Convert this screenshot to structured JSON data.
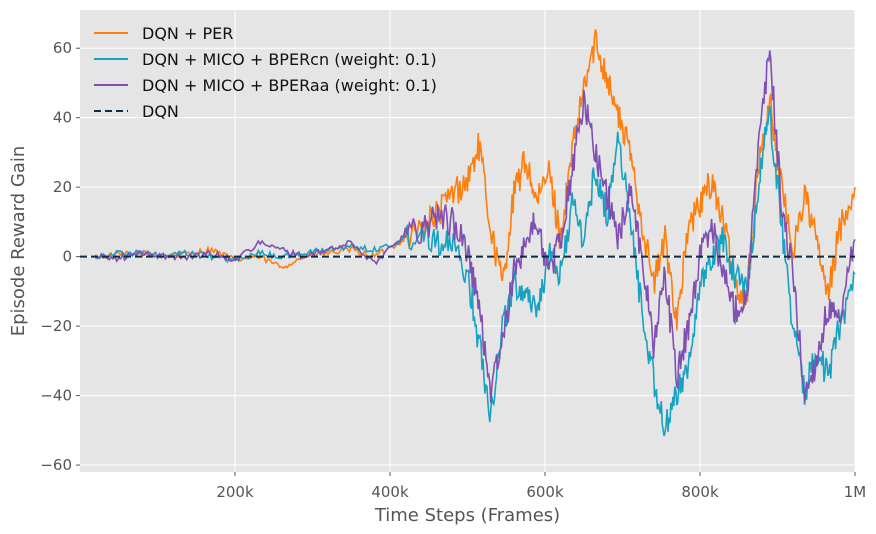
{
  "chart_data": {
    "type": "line",
    "title": "",
    "xlabel": "Time Steps (Frames)",
    "ylabel": "Episode Reward Gain",
    "xlim": [
      0,
      1000000
    ],
    "ylim": [
      -62,
      71
    ],
    "xticks": [
      {
        "value": 200000,
        "label": "200k"
      },
      {
        "value": 400000,
        "label": "400k"
      },
      {
        "value": 600000,
        "label": "600k"
      },
      {
        "value": 800000,
        "label": "800k"
      },
      {
        "value": 1000000,
        "label": "1M"
      }
    ],
    "yticks": [
      {
        "value": 60,
        "label": "60"
      },
      {
        "value": 40,
        "label": "40"
      },
      {
        "value": 20,
        "label": "20"
      },
      {
        "value": 0,
        "label": "0"
      },
      {
        "value": -20,
        "label": "−20"
      },
      {
        "value": -40,
        "label": "−40"
      },
      {
        "value": -60,
        "label": "−60"
      }
    ],
    "grid": true,
    "legend_position": "top-left",
    "series": [
      {
        "name": "DQN + PER",
        "color": "#ff7f0e",
        "style": "solid",
        "x": [
          20000,
          50000,
          80000,
          110000,
          140000,
          170000,
          200000,
          230000,
          260000,
          290000,
          320000,
          350000,
          380000,
          410000,
          440000,
          460000,
          480000,
          500000,
          515000,
          530000,
          545000,
          560000,
          575000,
          590000,
          605000,
          620000,
          635000,
          650000,
          665000,
          680000,
          695000,
          710000,
          725000,
          740000,
          755000,
          770000,
          785000,
          800000,
          815000,
          830000,
          845000,
          860000,
          875000,
          890000,
          905000,
          920000,
          935000,
          950000,
          965000,
          980000,
          1000000
        ],
        "y": [
          0,
          0.5,
          1,
          0,
          1,
          2,
          -1,
          0,
          -3,
          0,
          1,
          2,
          0,
          4,
          8,
          12,
          18,
          22,
          32,
          8,
          -8,
          18,
          28,
          15,
          25,
          5,
          30,
          48,
          62,
          52,
          40,
          30,
          10,
          -8,
          5,
          -18,
          8,
          15,
          22,
          10,
          -8,
          -12,
          25,
          45,
          20,
          2,
          18,
          5,
          -12,
          8,
          20
        ]
      },
      {
        "name": "DQN + MICO + BPERcn (weight: 0.1)",
        "color": "#17a2c2",
        "style": "solid",
        "x": [
          20000,
          50000,
          80000,
          110000,
          140000,
          170000,
          200000,
          230000,
          260000,
          290000,
          320000,
          350000,
          380000,
          410000,
          440000,
          460000,
          480000,
          500000,
          515000,
          530000,
          545000,
          560000,
          575000,
          590000,
          605000,
          620000,
          635000,
          650000,
          665000,
          680000,
          695000,
          710000,
          725000,
          740000,
          755000,
          770000,
          785000,
          800000,
          815000,
          830000,
          845000,
          860000,
          875000,
          890000,
          905000,
          920000,
          935000,
          950000,
          965000,
          980000,
          1000000
        ],
        "y": [
          0,
          1,
          1,
          0,
          1,
          0,
          -1,
          1,
          0,
          1,
          2,
          3,
          2,
          4,
          8,
          5,
          3,
          -5,
          -25,
          -45,
          -20,
          -8,
          -10,
          -15,
          0,
          -5,
          15,
          5,
          25,
          12,
          35,
          10,
          -15,
          -35,
          -50,
          -40,
          -30,
          -10,
          0,
          5,
          -5,
          -10,
          20,
          42,
          10,
          -20,
          -40,
          -25,
          -35,
          -20,
          -5
        ]
      },
      {
        "name": "DQN + MICO + BPERaa (weight: 0.1)",
        "color": "#7f4fb4",
        "style": "solid",
        "x": [
          20000,
          50000,
          80000,
          110000,
          140000,
          170000,
          200000,
          230000,
          260000,
          290000,
          320000,
          350000,
          380000,
          410000,
          440000,
          460000,
          480000,
          500000,
          515000,
          530000,
          545000,
          560000,
          575000,
          590000,
          605000,
          620000,
          635000,
          650000,
          665000,
          680000,
          695000,
          710000,
          725000,
          740000,
          755000,
          770000,
          785000,
          800000,
          815000,
          830000,
          845000,
          860000,
          875000,
          890000,
          905000,
          920000,
          935000,
          950000,
          965000,
          980000,
          1000000
        ],
        "y": [
          0,
          -0.5,
          1,
          0,
          0,
          1,
          -1,
          4,
          2,
          0,
          2,
          4,
          -2,
          5,
          8,
          12,
          10,
          2,
          -15,
          -38,
          -25,
          -5,
          5,
          10,
          -5,
          5,
          25,
          45,
          30,
          18,
          5,
          20,
          0,
          -25,
          -5,
          -35,
          -20,
          0,
          10,
          -5,
          -15,
          -12,
          30,
          60,
          15,
          -5,
          -40,
          -30,
          -15,
          -20,
          5
        ]
      },
      {
        "name": "DQN",
        "color": "#0f2d45",
        "style": "dashed",
        "x": [
          0,
          1000000
        ],
        "y": [
          0,
          0
        ]
      }
    ]
  }
}
